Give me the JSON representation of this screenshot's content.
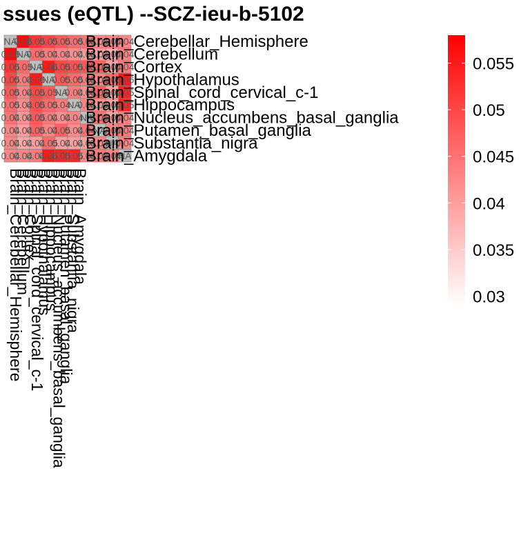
{
  "chart_data": {
    "type": "heatmap",
    "title": "ssues (eQTL) --SCZ-ieu-b-5102",
    "row_labels": [
      "Brain_Cerebellar_Hemisphere",
      "Brain_Cerebellum",
      "Brain_Cortex",
      "Brain_Hypothalamus",
      "Brain_Spinal_cord_cervical_c-1",
      "Brain_Hippocampus",
      "Brain_Nucleus_accumbens_basal_ganglia",
      "Brain_Putamen_basal_ganglia",
      "Brain_Substantia_nigra",
      "Brain_Amygdala"
    ],
    "col_labels": [
      "Brain_Cerebellar_Hemisphere",
      "Brain_Cerebellum",
      "Brain_Cortex",
      "Brain_Spinal_cord_cervical_c-1",
      "Brain_Hypothalamus",
      "Brain_Hippocampus",
      "Brain_Nucleus_accumbens_basal_ganglia",
      "Brain_Putamen_basal_ganglia",
      "Brain_Substantia_nigra",
      "Brain_Amygdala"
    ],
    "values": [
      [
        null,
        0.057,
        0.052,
        0.05,
        0.048,
        0.046,
        0.045,
        0.043,
        0.043,
        0.043
      ],
      [
        0.057,
        null,
        0.046,
        0.044,
        0.043,
        0.042,
        0.041,
        0.04,
        0.039,
        0.043
      ],
      [
        0.052,
        0.046,
        null,
        0.055,
        0.05,
        0.049,
        0.048,
        0.047,
        0.04,
        0.044
      ],
      [
        0.05,
        0.044,
        0.055,
        null,
        0.048,
        0.046,
        0.044,
        0.043,
        0.046,
        0.055
      ],
      [
        0.048,
        0.043,
        0.05,
        0.048,
        null,
        0.044,
        0.042,
        0.047,
        0.04,
        0.054
      ],
      [
        0.046,
        0.042,
        0.049,
        0.046,
        0.044,
        null,
        0.043,
        0.042,
        0.04,
        0.054
      ],
      [
        0.045,
        0.041,
        0.048,
        0.044,
        0.042,
        0.043,
        null,
        0.045,
        0.04,
        0.043
      ],
      [
        0.043,
        0.04,
        0.047,
        0.043,
        0.047,
        0.042,
        0.045,
        null,
        0.043,
        0.044
      ],
      [
        0.043,
        0.039,
        0.04,
        0.046,
        0.04,
        0.04,
        0.04,
        0.043,
        null,
        0.043
      ],
      [
        0.043,
        0.043,
        0.044,
        0.055,
        0.054,
        0.054,
        0.043,
        0.044,
        0.043,
        null
      ]
    ],
    "cell_labels": [
      [
        "NA",
        "0.06",
        "0.05",
        "0.05",
        "0.05",
        "0.05",
        "0.04",
        "0.04",
        "0.04",
        "0.04"
      ],
      [
        "0.06",
        "NA",
        "0.05",
        "0.04",
        "0.04",
        "0.04",
        "0.04",
        "0.04",
        "0.04",
        "0.04"
      ],
      [
        "0.05",
        "0.05",
        "NA",
        "0.06",
        "0.05",
        "0.05",
        "0.05",
        "0.05",
        "0.04",
        "0.04"
      ],
      [
        "0.05",
        "0.04",
        "0.06",
        "NA",
        "0.05",
        "0.05",
        "0.04",
        "0.04",
        "0.05",
        "0.06"
      ],
      [
        "0.05",
        "0.04",
        "0.05",
        "0.05",
        "NA",
        "0.04",
        "0.04",
        "0.05",
        "0.04",
        "0.05"
      ],
      [
        "0.05",
        "0.04",
        "0.05",
        "0.05",
        "0.04",
        "NA",
        "0.04",
        "0.04",
        "0.04",
        "0.05"
      ],
      [
        "0.04",
        "0.04",
        "0.05",
        "0.04",
        "0.04",
        "0.04",
        "NA",
        "0.04",
        "0.04",
        "0.04"
      ],
      [
        "0.04",
        "0.04",
        "0.05",
        "0.04",
        "0.05",
        "0.04",
        "0.04",
        "NA",
        "0.04",
        "0.04"
      ],
      [
        "0.04",
        "0.04",
        "0.04",
        "0.05",
        "0.04",
        "0.04",
        "0.04",
        "0.04",
        "NA",
        "0.04"
      ],
      [
        "0.04",
        "0.04",
        "0.04",
        "0.06",
        "0.05",
        "0.05",
        "0.04",
        "0.04",
        "0.04",
        "NA"
      ]
    ],
    "color_scale": {
      "low": 0.029,
      "high": 0.058,
      "low_color": "#ffffff",
      "high_color": "#ff0000",
      "na_color": "#bebebe",
      "ticks": [
        0.055,
        0.05,
        0.045,
        0.04,
        0.035,
        0.03
      ],
      "tick_labels": [
        "0.055",
        "0.05",
        "0.045",
        "0.04",
        "0.035",
        "0.03"
      ]
    },
    "legend_position": "right",
    "grid": false
  }
}
